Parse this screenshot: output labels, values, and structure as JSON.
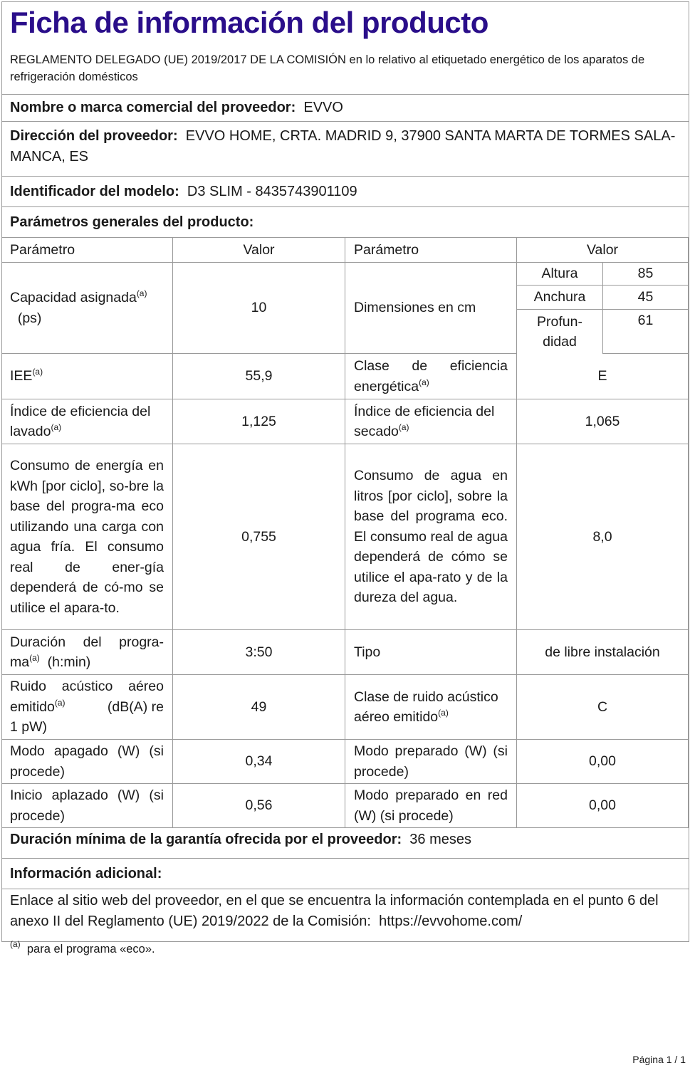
{
  "title": "Ficha de información del producto",
  "subtitle": "REGLAMENTO DELEGADO (UE) 2019/2017 DE LA COMISIÓN en lo relativo al etiquetado energético de los aparatos de refrigeración domésticos",
  "supplier": {
    "label": "Nombre o marca comercial del proveedor:",
    "value": "EVVO"
  },
  "address": {
    "label": "Dirección del proveedor:",
    "value": "EVVO HOME, CRTA. MADRID 9, 37900 SANTA MARTA DE TORMES SALA-MANCA, ES"
  },
  "model": {
    "label": "Identificador del modelo:",
    "value": "D3 SLIM - 8435743901109"
  },
  "general_heading": "Parámetros generales del producto:",
  "table": {
    "headers": [
      "Parámetro",
      "Valor",
      "Parámetro",
      "Valor"
    ],
    "sup": "(a)",
    "capacity": {
      "label": "Capacidad asignada",
      "unit": "(ps)",
      "value": "10"
    },
    "dimensions": {
      "label": "Dimensiones en cm",
      "items": [
        {
          "name": "Altura",
          "value": "85"
        },
        {
          "name": "Anchura",
          "value": "45"
        },
        {
          "name": "Profun-didad",
          "value": "61"
        }
      ]
    },
    "iee": {
      "label": "IEE",
      "value": "55,9"
    },
    "energy_class": {
      "label1": "Clase de eficiencia",
      "label2": "energética",
      "value": "E"
    },
    "wash_index": {
      "label1": "Índice de eficiencia del",
      "label2": "lavado",
      "value": "1,125"
    },
    "dry_index": {
      "label1": "Índice de eficiencia del",
      "label2": "secado",
      "value": "1,065"
    },
    "energy": {
      "label": "Consumo de energía en kWh [por ciclo], so-bre la base del progra-ma eco utilizando una carga con agua fría. El consumo real de ener-gía dependerá de có-mo se utilice el apara-to.",
      "value": "0,755"
    },
    "water": {
      "label": "Consumo de agua en litros [por ciclo], sobre la base del programa eco. El consumo real de agua dependerá de cómo se utilice el apa-rato y de la dureza del agua.",
      "value": "8,0"
    },
    "duration": {
      "label1": "Duración del progra-",
      "label2": "ma",
      "label3": "(h:min)",
      "value": "3:50"
    },
    "type": {
      "label": "Tipo",
      "value": "de libre instalación"
    },
    "noise": {
      "label1": "Ruido acústico aéreo",
      "label2": "emitido",
      "label3": "(dB(A) re",
      "label4": "1 pW)",
      "value": "49"
    },
    "noise_class": {
      "label1": "Clase de ruido acústico",
      "label2": "aéreo emitido",
      "value": "C"
    },
    "off_mode": {
      "label": "Modo apagado (W) (si procede)",
      "value": "0,34"
    },
    "standby": {
      "label": "Modo preparado (W) (si procede)",
      "value": "0,00"
    },
    "delay_start": {
      "label": "Inicio aplazado (W) (si procede)",
      "value": "0,56"
    },
    "networked_standby": {
      "label": "Modo preparado en red (W) (si procede)",
      "value": "0,00"
    }
  },
  "warranty": {
    "label": "Duración mínima de la garantía ofrecida por el proveedor:",
    "value": "36 meses"
  },
  "additional_heading": "Información adicional:",
  "link_text": "Enlace al sitio web del proveedor, en el que se encuentra la información contemplada en el punto 6 del anexo II del Reglamento (UE) 2019/2022 de la Comisión:",
  "link_url": "https://evvohome.com/",
  "footnote": {
    "mark": "(a)",
    "text": "para el programa «eco»."
  },
  "page_label": "Página 1 / 1"
}
